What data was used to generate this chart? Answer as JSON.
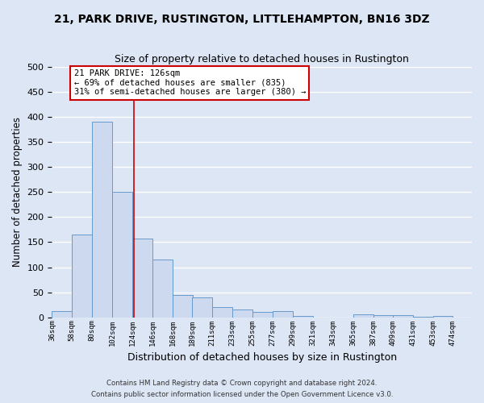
{
  "title": "21, PARK DRIVE, RUSTINGTON, LITTLEHAMPTON, BN16 3DZ",
  "subtitle": "Size of property relative to detached houses in Rustington",
  "xlabel": "Distribution of detached houses by size in Rustington",
  "ylabel": "Number of detached properties",
  "bar_left_edges": [
    36,
    58,
    80,
    102,
    124,
    146,
    168,
    189,
    211,
    233,
    255,
    277,
    299,
    321,
    343,
    365,
    387,
    409,
    431,
    453
  ],
  "bar_heights": [
    13,
    165,
    390,
    250,
    157,
    115,
    44,
    39,
    20,
    15,
    10,
    13,
    3,
    0,
    0,
    6,
    4,
    4,
    1,
    3
  ],
  "bar_widths": [
    22,
    22,
    22,
    22,
    22,
    22,
    22,
    22,
    22,
    22,
    22,
    22,
    22,
    22,
    22,
    22,
    22,
    22,
    22,
    21
  ],
  "bar_color": "#ccd9ee",
  "bar_edge_color": "#6699cc",
  "vline_x": 126,
  "vline_color": "#cc0000",
  "ylim": [
    0,
    500
  ],
  "yticks": [
    0,
    50,
    100,
    150,
    200,
    250,
    300,
    350,
    400,
    450,
    500
  ],
  "xlim_left": 36,
  "xlim_right": 495,
  "xtick_labels": [
    "36sqm",
    "58sqm",
    "80sqm",
    "102sqm",
    "124sqm",
    "146sqm",
    "168sqm",
    "189sqm",
    "211sqm",
    "233sqm",
    "255sqm",
    "277sqm",
    "299sqm",
    "321sqm",
    "343sqm",
    "365sqm",
    "387sqm",
    "409sqm",
    "431sqm",
    "453sqm",
    "474sqm"
  ],
  "xtick_positions": [
    36,
    58,
    80,
    102,
    124,
    146,
    168,
    189,
    211,
    233,
    255,
    277,
    299,
    321,
    343,
    365,
    387,
    409,
    431,
    453,
    474
  ],
  "annotation_title": "21 PARK DRIVE: 126sqm",
  "annotation_line1": "← 69% of detached houses are smaller (835)",
  "annotation_line2": "31% of semi-detached houses are larger (380) →",
  "annotation_box_color": "#cc0000",
  "bg_color": "#dde6f5",
  "grid_color": "#ffffff",
  "footer_line1": "Contains HM Land Registry data © Crown copyright and database right 2024.",
  "footer_line2": "Contains public sector information licensed under the Open Government Licence v3.0."
}
